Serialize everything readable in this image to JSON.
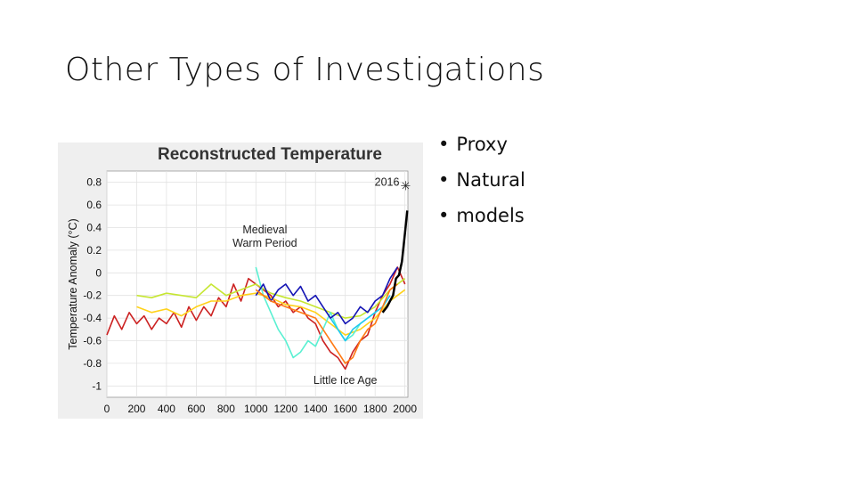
{
  "slide": {
    "title": "Other Types of Investigations",
    "bullets": [
      "Proxy",
      "Natural",
      "models"
    ],
    "bullet_glyph": "•"
  },
  "chart_data": {
    "type": "line",
    "title": "Reconstructed Temperature",
    "xlabel": "",
    "ylabel": "Temperature Anomaly (°C)",
    "xlim": [
      0,
      2020
    ],
    "ylim": [
      -1.1,
      0.9
    ],
    "xticks": [
      0,
      200,
      400,
      600,
      800,
      1000,
      1200,
      1400,
      1600,
      1800,
      2000
    ],
    "yticks": [
      -1,
      -0.8,
      -0.6,
      -0.4,
      -0.2,
      0,
      0.2,
      0.4,
      0.6,
      0.8
    ],
    "grid": true,
    "legend": "none",
    "background": "#efefef",
    "plot_background": "#ffffff",
    "annotations": [
      {
        "text": "2016",
        "x": 1880,
        "y": 0.77
      },
      {
        "text": "Medieval",
        "x": 1060,
        "y": 0.35
      },
      {
        "text": "Warm Period",
        "x": 1060,
        "y": 0.23
      },
      {
        "text": "Little Ice Age",
        "x": 1600,
        "y": -0.98
      }
    ],
    "marker_2016": {
      "symbol": "✳",
      "x": 2016,
      "y": 0.77
    },
    "series": [
      {
        "color": "#cc2222",
        "x": [
          0,
          50,
          100,
          150,
          200,
          250,
          300,
          350,
          400,
          450,
          500,
          550,
          600,
          650,
          700,
          750,
          800,
          850,
          900,
          950,
          1000,
          1050,
          1100,
          1150,
          1200,
          1250,
          1300,
          1350,
          1400,
          1450,
          1500,
          1550,
          1600,
          1650,
          1700,
          1750,
          1800,
          1850,
          1900,
          1950,
          2000
        ],
        "y": [
          -0.55,
          -0.38,
          -0.5,
          -0.35,
          -0.45,
          -0.38,
          -0.5,
          -0.4,
          -0.45,
          -0.35,
          -0.48,
          -0.3,
          -0.42,
          -0.3,
          -0.38,
          -0.22,
          -0.3,
          -0.1,
          -0.25,
          -0.05,
          -0.1,
          -0.15,
          -0.2,
          -0.3,
          -0.25,
          -0.35,
          -0.3,
          -0.4,
          -0.45,
          -0.6,
          -0.7,
          -0.75,
          -0.85,
          -0.7,
          -0.6,
          -0.55,
          -0.35,
          -0.2,
          -0.1,
          0.05,
          -0.1
        ]
      },
      {
        "color": "#ffd21a",
        "x": [
          200,
          300,
          400,
          500,
          600,
          700,
          800,
          900,
          1000,
          1100,
          1200,
          1300,
          1400,
          1500,
          1600,
          1700,
          1800,
          1900,
          2000
        ],
        "y": [
          -0.3,
          -0.35,
          -0.32,
          -0.38,
          -0.3,
          -0.25,
          -0.25,
          -0.2,
          -0.18,
          -0.22,
          -0.28,
          -0.3,
          -0.35,
          -0.45,
          -0.55,
          -0.5,
          -0.4,
          -0.25,
          -0.15
        ]
      },
      {
        "color": "#c6e632",
        "x": [
          200,
          300,
          400,
          500,
          600,
          700,
          800,
          900,
          1000,
          1100,
          1200,
          1300,
          1400,
          1500,
          1600,
          1700,
          1800,
          1900,
          2000
        ],
        "y": [
          -0.2,
          -0.22,
          -0.18,
          -0.2,
          -0.22,
          -0.1,
          -0.2,
          -0.15,
          -0.1,
          -0.18,
          -0.22,
          -0.25,
          -0.3,
          -0.35,
          -0.4,
          -0.38,
          -0.3,
          -0.15,
          -0.05
        ]
      },
      {
        "color": "#5af0d2",
        "x": [
          1000,
          1050,
          1100,
          1150,
          1200,
          1250,
          1300,
          1350,
          1400,
          1450,
          1500,
          1550,
          1600,
          1650,
          1700,
          1750,
          1800,
          1850,
          1900
        ],
        "y": [
          0.05,
          -0.2,
          -0.35,
          -0.5,
          -0.6,
          -0.75,
          -0.7,
          -0.6,
          -0.65,
          -0.5,
          -0.35,
          -0.5,
          -0.6,
          -0.55,
          -0.45,
          -0.4,
          -0.35,
          -0.3,
          -0.2
        ]
      },
      {
        "color": "#1ec8f0",
        "x": [
          1500,
          1550,
          1600,
          1650,
          1700,
          1750,
          1800,
          1850,
          1900
        ],
        "y": [
          -0.4,
          -0.5,
          -0.6,
          -0.5,
          -0.45,
          -0.4,
          -0.35,
          -0.3,
          -0.2
        ]
      },
      {
        "color": "#1414b4",
        "x": [
          1000,
          1050,
          1100,
          1150,
          1200,
          1250,
          1300,
          1350,
          1400,
          1450,
          1500,
          1550,
          1600,
          1650,
          1700,
          1750,
          1800,
          1850,
          1900,
          1950
        ],
        "y": [
          -0.2,
          -0.1,
          -0.25,
          -0.15,
          -0.1,
          -0.2,
          -0.12,
          -0.25,
          -0.2,
          -0.3,
          -0.4,
          -0.35,
          -0.45,
          -0.4,
          -0.3,
          -0.35,
          -0.25,
          -0.2,
          -0.05,
          0.05
        ]
      },
      {
        "color": "#ff7a14",
        "x": [
          1000,
          1100,
          1200,
          1300,
          1400,
          1500,
          1550,
          1600,
          1650,
          1700,
          1750,
          1800,
          1850,
          1900,
          1950
        ],
        "y": [
          -0.15,
          -0.25,
          -0.3,
          -0.35,
          -0.4,
          -0.6,
          -0.7,
          -0.8,
          -0.75,
          -0.6,
          -0.5,
          -0.45,
          -0.3,
          -0.15,
          -0.1
        ]
      },
      {
        "color": "#000000",
        "width": 2.5,
        "x": [
          1850,
          1880,
          1900,
          1920,
          1940,
          1960,
          1980,
          2000,
          2016
        ],
        "y": [
          -0.35,
          -0.3,
          -0.25,
          -0.2,
          -0.05,
          -0.02,
          0.1,
          0.35,
          0.55
        ]
      }
    ]
  }
}
